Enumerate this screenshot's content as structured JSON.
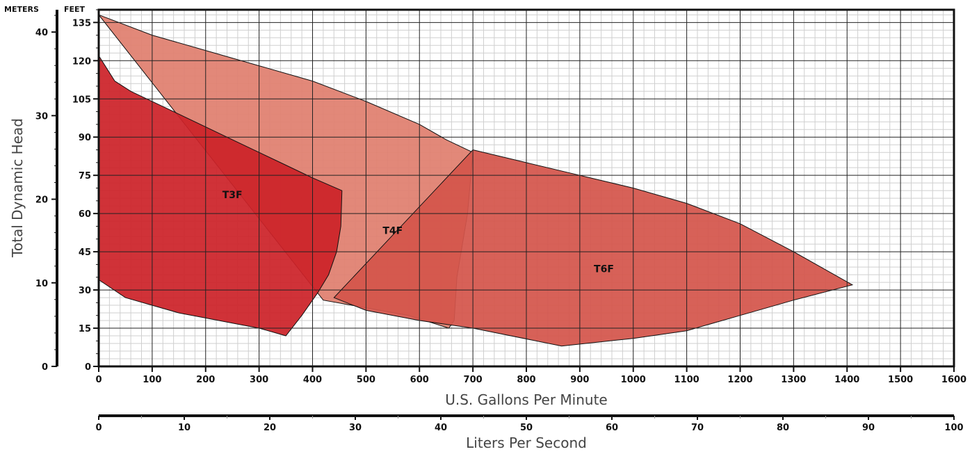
{
  "chart_data": {
    "type": "area",
    "title": "",
    "xlabel": "U.S. Gallons Per Minute",
    "x2label": "Liters Per Second",
    "ylabel": "Total Dynamic Head",
    "y_units_left": "METERS",
    "y_units_right": "FEET",
    "xlim": [
      0,
      1600
    ],
    "ylim": [
      0,
      140
    ],
    "x_ticks": [
      0,
      100,
      200,
      300,
      400,
      500,
      600,
      700,
      800,
      900,
      1000,
      1100,
      1200,
      1300,
      1400,
      1500,
      1600
    ],
    "y_ticks_feet": [
      0,
      15,
      30,
      45,
      60,
      75,
      90,
      105,
      120,
      135
    ],
    "y_ticks_meters": [
      0,
      10,
      20,
      30,
      40
    ],
    "x2_ticks_lps": [
      0,
      10,
      20,
      30,
      40,
      50,
      60,
      70,
      80,
      90,
      100
    ],
    "grid": true,
    "regions": [
      {
        "name": "T4F",
        "color": "#e07f6f",
        "label_at": [
          550,
          52
        ],
        "points": [
          [
            0,
            138
          ],
          [
            100,
            130
          ],
          [
            200,
            124
          ],
          [
            300,
            118
          ],
          [
            400,
            112
          ],
          [
            500,
            104
          ],
          [
            600,
            95
          ],
          [
            650,
            89
          ],
          [
            700,
            84
          ],
          [
            690,
            60
          ],
          [
            670,
            35
          ],
          [
            665,
            18
          ],
          [
            655,
            15
          ],
          [
            580,
            20
          ],
          [
            500,
            23
          ],
          [
            420,
            26
          ]
        ]
      },
      {
        "name": "T6F",
        "color": "#d4554b",
        "label_at": [
          945,
          37
        ],
        "points": [
          [
            700,
            85
          ],
          [
            800,
            80
          ],
          [
            900,
            75
          ],
          [
            1000,
            70
          ],
          [
            1100,
            64
          ],
          [
            1200,
            56
          ],
          [
            1300,
            45
          ],
          [
            1410,
            32
          ],
          [
            1300,
            26
          ],
          [
            1200,
            20
          ],
          [
            1100,
            14
          ],
          [
            1000,
            11
          ],
          [
            866,
            8
          ],
          [
            700,
            15
          ],
          [
            600,
            18
          ],
          [
            500,
            22
          ],
          [
            440,
            27
          ]
        ]
      },
      {
        "name": "T3F",
        "color": "#cc2229",
        "label_at": [
          250,
          66
        ],
        "points": [
          [
            0,
            122
          ],
          [
            15,
            117
          ],
          [
            30,
            112
          ],
          [
            60,
            108
          ],
          [
            100,
            104
          ],
          [
            150,
            99
          ],
          [
            200,
            94
          ],
          [
            250,
            89
          ],
          [
            300,
            84
          ],
          [
            350,
            79
          ],
          [
            400,
            74
          ],
          [
            455,
            69
          ],
          [
            453,
            55
          ],
          [
            445,
            45
          ],
          [
            430,
            36
          ],
          [
            410,
            29
          ],
          [
            380,
            20
          ],
          [
            350,
            12
          ],
          [
            300,
            15
          ],
          [
            250,
            17
          ],
          [
            200,
            19
          ],
          [
            150,
            21
          ],
          [
            100,
            24
          ],
          [
            50,
            27
          ],
          [
            0,
            34
          ]
        ]
      }
    ]
  }
}
